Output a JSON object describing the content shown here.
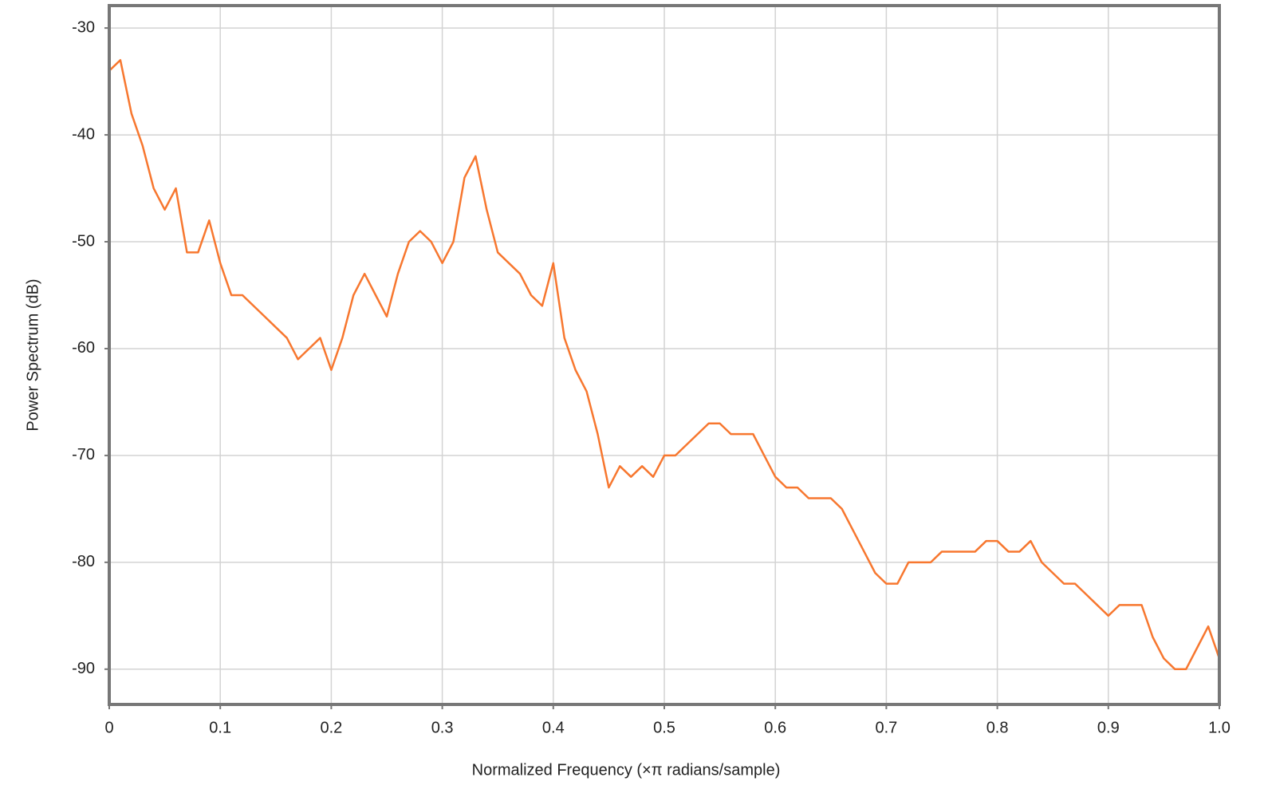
{
  "chart_data": {
    "type": "line",
    "xlabel": "Normalized Frequency (×π radians/sample)",
    "ylabel": "Power Spectrum (dB)",
    "x": [
      0,
      0.01,
      0.02,
      0.03,
      0.04,
      0.05,
      0.06,
      0.07,
      0.08,
      0.09,
      0.1,
      0.11,
      0.12,
      0.13,
      0.14,
      0.15,
      0.16,
      0.17,
      0.18,
      0.19,
      0.2,
      0.21,
      0.22,
      0.23,
      0.24,
      0.25,
      0.26,
      0.27,
      0.28,
      0.29,
      0.3,
      0.31,
      0.32,
      0.33,
      0.34,
      0.35,
      0.36,
      0.37,
      0.38,
      0.39,
      0.4,
      0.41,
      0.42,
      0.43,
      0.44,
      0.45,
      0.46,
      0.47,
      0.48,
      0.49,
      0.5,
      0.51,
      0.52,
      0.53,
      0.54,
      0.55,
      0.56,
      0.57,
      0.58,
      0.59,
      0.6,
      0.61,
      0.62,
      0.63,
      0.64,
      0.65,
      0.66,
      0.67,
      0.68,
      0.69,
      0.7,
      0.71,
      0.72,
      0.73,
      0.74,
      0.75,
      0.76,
      0.77,
      0.78,
      0.79,
      0.8,
      0.81,
      0.82,
      0.83,
      0.84,
      0.85,
      0.86,
      0.87,
      0.88,
      0.89,
      0.9,
      0.91,
      0.92,
      0.93,
      0.94,
      0.95,
      0.96,
      0.97,
      0.98,
      0.99,
      1
    ],
    "series": [
      {
        "color": "#f7772f",
        "values": [
          -34,
          -33,
          -38,
          -41,
          -45,
          -47,
          -45,
          -51,
          -51,
          -48,
          -52,
          -55,
          -55,
          -56,
          -57,
          -58,
          -59,
          -61,
          -60,
          -59,
          -62,
          -59,
          -55,
          -53,
          -55,
          -57,
          -53,
          -50,
          -49,
          -50,
          -52,
          -50,
          -44,
          -42,
          -47,
          -51,
          -52,
          -53,
          -55,
          -56,
          -52,
          -59,
          -62,
          -64,
          -68,
          -73,
          -71,
          -72,
          -71,
          -72,
          -70,
          -70,
          -69,
          -68,
          -67,
          -67,
          -68,
          -68,
          -68,
          -70,
          -72,
          -73,
          -73,
          -74,
          -74,
          -74,
          -75,
          -77,
          -79,
          -81,
          -82,
          -82,
          -80,
          -80,
          -80,
          -79,
          -79,
          -79,
          -79,
          -78,
          -78,
          -79,
          -79,
          -78,
          -80,
          -81,
          -82,
          -82,
          -83,
          -84,
          -85,
          -84,
          -84,
          -84,
          -87,
          -89,
          -90,
          -90,
          -88,
          -86,
          -89
        ]
      }
    ],
    "xlim": [
      0,
      1
    ],
    "ylim": [
      -93.3,
      -27.9
    ],
    "xticks": [
      0,
      0.1,
      0.2,
      0.3,
      0.4,
      0.5,
      0.6,
      0.7,
      0.8,
      0.9,
      {
        "value": 1,
        "label": "1.0"
      }
    ],
    "yticks": [
      -90,
      -80,
      -70,
      -60,
      -50,
      -40,
      -30
    ],
    "grid": true
  }
}
